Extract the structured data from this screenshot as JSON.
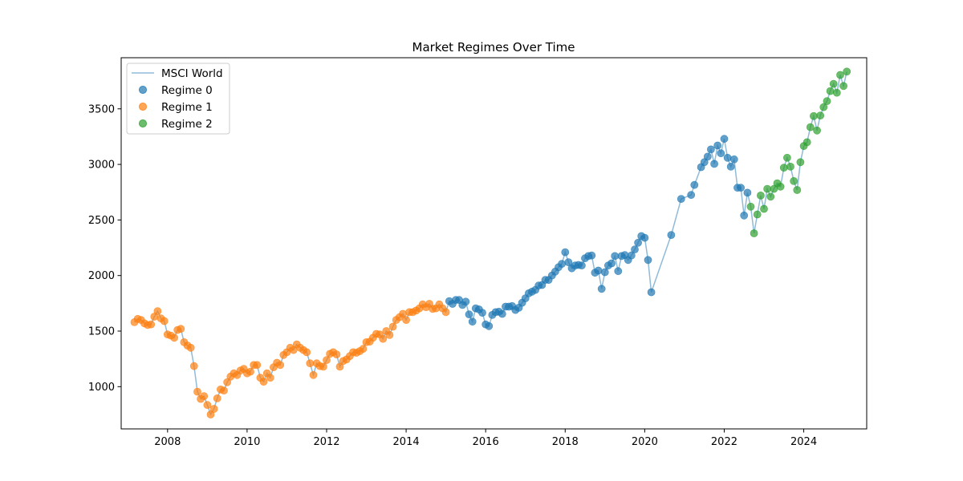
{
  "chart_data": {
    "type": "scatter",
    "title": "Market Regimes Over Time",
    "xlabel": "",
    "ylabel": "",
    "xlim": [
      "2006-11-01",
      "2025-08-01"
    ],
    "ylim": [
      620,
      3960
    ],
    "x_ticks": [
      "2008",
      "2010",
      "2012",
      "2014",
      "2016",
      "2018",
      "2020",
      "2022",
      "2024"
    ],
    "y_ticks": [
      1000,
      1500,
      2000,
      2500,
      3000,
      3500
    ],
    "grid": false,
    "legend_position": "upper-left",
    "line_series": {
      "name": "MSCI World",
      "color": "#1f77b4"
    },
    "series": [
      {
        "name": "Regime 0",
        "color": "#1f77b4",
        "points": [
          [
            "2015-02",
            1770
          ],
          [
            "2015-03",
            1745
          ],
          [
            "2015-04",
            1780
          ],
          [
            "2015-05",
            1780
          ],
          [
            "2015-06",
            1735
          ],
          [
            "2015-07",
            1765
          ],
          [
            "2015-08",
            1650
          ],
          [
            "2015-09",
            1585
          ],
          [
            "2015-10",
            1705
          ],
          [
            "2015-11",
            1695
          ],
          [
            "2015-12",
            1665
          ],
          [
            "2016-01",
            1560
          ],
          [
            "2016-02",
            1545
          ],
          [
            "2016-03",
            1645
          ],
          [
            "2016-04",
            1670
          ],
          [
            "2016-05",
            1675
          ],
          [
            "2016-06",
            1655
          ],
          [
            "2016-07",
            1720
          ],
          [
            "2016-08",
            1720
          ],
          [
            "2016-09",
            1725
          ],
          [
            "2016-10",
            1690
          ],
          [
            "2016-11",
            1710
          ],
          [
            "2016-12",
            1755
          ],
          [
            "2017-01",
            1795
          ],
          [
            "2017-02",
            1840
          ],
          [
            "2017-03",
            1855
          ],
          [
            "2017-04",
            1870
          ],
          [
            "2017-05",
            1910
          ],
          [
            "2017-06",
            1915
          ],
          [
            "2017-07",
            1960
          ],
          [
            "2017-08",
            1960
          ],
          [
            "2017-09",
            2000
          ],
          [
            "2017-10",
            2035
          ],
          [
            "2017-11",
            2075
          ],
          [
            "2017-12",
            2105
          ],
          [
            "2018-01",
            2210
          ],
          [
            "2018-02",
            2120
          ],
          [
            "2018-03",
            2065
          ],
          [
            "2018-04",
            2090
          ],
          [
            "2018-05",
            2095
          ],
          [
            "2018-06",
            2090
          ],
          [
            "2018-07",
            2155
          ],
          [
            "2018-08",
            2175
          ],
          [
            "2018-09",
            2180
          ],
          [
            "2018-10",
            2025
          ],
          [
            "2018-11",
            2045
          ],
          [
            "2018-12",
            1880
          ],
          [
            "2019-01",
            2030
          ],
          [
            "2019-02",
            2090
          ],
          [
            "2019-03",
            2110
          ],
          [
            "2019-04",
            2175
          ],
          [
            "2019-05",
            2040
          ],
          [
            "2019-06",
            2175
          ],
          [
            "2019-07",
            2185
          ],
          [
            "2019-08",
            2140
          ],
          [
            "2019-09",
            2180
          ],
          [
            "2019-10",
            2235
          ],
          [
            "2019-11",
            2295
          ],
          [
            "2019-12",
            2355
          ],
          [
            "2020-01",
            2340
          ],
          [
            "2020-02",
            2140
          ],
          [
            "2020-03",
            1850
          ],
          [
            "2020-09",
            2365
          ],
          [
            "2020-12",
            2690
          ],
          [
            "2021-03",
            2725
          ],
          [
            "2021-04",
            2815
          ],
          [
            "2021-06",
            2975
          ],
          [
            "2021-07",
            3020
          ],
          [
            "2021-08",
            3070
          ],
          [
            "2021-09",
            3135
          ],
          [
            "2021-10",
            3005
          ],
          [
            "2021-11",
            3170
          ],
          [
            "2021-12",
            3100
          ],
          [
            "2022-01",
            3230
          ],
          [
            "2022-02",
            3060
          ],
          [
            "2022-03",
            2980
          ],
          [
            "2022-04",
            3045
          ],
          [
            "2022-05",
            2790
          ],
          [
            "2022-06",
            2790
          ],
          [
            "2022-07",
            2540
          ],
          [
            "2022-08",
            2745
          ]
        ]
      },
      {
        "name": "Regime 1",
        "color": "#ff7f0e",
        "points": [
          [
            "2007-03",
            1580
          ],
          [
            "2007-04",
            1610
          ],
          [
            "2007-05",
            1600
          ],
          [
            "2007-06",
            1570
          ],
          [
            "2007-07",
            1555
          ],
          [
            "2007-08",
            1560
          ],
          [
            "2007-09",
            1630
          ],
          [
            "2007-10",
            1680
          ],
          [
            "2007-11",
            1615
          ],
          [
            "2007-12",
            1590
          ],
          [
            "2008-01",
            1470
          ],
          [
            "2008-02",
            1460
          ],
          [
            "2008-03",
            1440
          ],
          [
            "2008-04",
            1510
          ],
          [
            "2008-05",
            1520
          ],
          [
            "2008-06",
            1400
          ],
          [
            "2008-07",
            1370
          ],
          [
            "2008-08",
            1350
          ],
          [
            "2008-09",
            1185
          ],
          [
            "2008-10",
            955
          ],
          [
            "2008-11",
            890
          ],
          [
            "2008-12",
            915
          ],
          [
            "2009-01",
            835
          ],
          [
            "2009-02",
            750
          ],
          [
            "2009-03",
            800
          ],
          [
            "2009-04",
            895
          ],
          [
            "2009-05",
            975
          ],
          [
            "2009-06",
            965
          ],
          [
            "2009-07",
            1040
          ],
          [
            "2009-08",
            1090
          ],
          [
            "2009-09",
            1120
          ],
          [
            "2009-10",
            1105
          ],
          [
            "2009-11",
            1145
          ],
          [
            "2009-12",
            1160
          ],
          [
            "2010-01",
            1120
          ],
          [
            "2010-02",
            1135
          ],
          [
            "2010-03",
            1195
          ],
          [
            "2010-04",
            1195
          ],
          [
            "2010-05",
            1080
          ],
          [
            "2010-06",
            1045
          ],
          [
            "2010-07",
            1120
          ],
          [
            "2010-08",
            1080
          ],
          [
            "2010-09",
            1175
          ],
          [
            "2010-10",
            1215
          ],
          [
            "2010-11",
            1195
          ],
          [
            "2010-12",
            1285
          ],
          [
            "2011-01",
            1310
          ],
          [
            "2011-02",
            1350
          ],
          [
            "2011-03",
            1330
          ],
          [
            "2011-04",
            1380
          ],
          [
            "2011-05",
            1350
          ],
          [
            "2011-06",
            1330
          ],
          [
            "2011-07",
            1310
          ],
          [
            "2011-08",
            1210
          ],
          [
            "2011-09",
            1105
          ],
          [
            "2011-10",
            1210
          ],
          [
            "2011-11",
            1185
          ],
          [
            "2011-12",
            1180
          ],
          [
            "2012-01",
            1240
          ],
          [
            "2012-02",
            1295
          ],
          [
            "2012-03",
            1310
          ],
          [
            "2012-04",
            1290
          ],
          [
            "2012-05",
            1180
          ],
          [
            "2012-06",
            1230
          ],
          [
            "2012-07",
            1245
          ],
          [
            "2012-08",
            1275
          ],
          [
            "2012-09",
            1310
          ],
          [
            "2012-10",
            1305
          ],
          [
            "2012-11",
            1320
          ],
          [
            "2012-12",
            1340
          ],
          [
            "2013-01",
            1400
          ],
          [
            "2013-02",
            1405
          ],
          [
            "2013-03",
            1440
          ],
          [
            "2013-04",
            1475
          ],
          [
            "2013-05",
            1470
          ],
          [
            "2013-06",
            1430
          ],
          [
            "2013-07",
            1500
          ],
          [
            "2013-08",
            1465
          ],
          [
            "2013-09",
            1540
          ],
          [
            "2013-10",
            1600
          ],
          [
            "2013-11",
            1625
          ],
          [
            "2013-12",
            1655
          ],
          [
            "2014-01",
            1600
          ],
          [
            "2014-02",
            1670
          ],
          [
            "2014-03",
            1670
          ],
          [
            "2014-04",
            1685
          ],
          [
            "2014-05",
            1705
          ],
          [
            "2014-06",
            1740
          ],
          [
            "2014-07",
            1715
          ],
          [
            "2014-08",
            1745
          ],
          [
            "2014-09",
            1700
          ],
          [
            "2014-10",
            1705
          ],
          [
            "2014-11",
            1740
          ],
          [
            "2014-12",
            1705
          ],
          [
            "2015-01",
            1670
          ]
        ]
      },
      {
        "name": "Regime 2",
        "color": "#2ca02c",
        "points": [
          [
            "2022-09",
            2620
          ],
          [
            "2022-10",
            2380
          ],
          [
            "2022-11",
            2550
          ],
          [
            "2022-12",
            2720
          ],
          [
            "2023-01",
            2600
          ],
          [
            "2023-02",
            2780
          ],
          [
            "2023-03",
            2710
          ],
          [
            "2023-04",
            2780
          ],
          [
            "2023-05",
            2830
          ],
          [
            "2023-06",
            2800
          ],
          [
            "2023-07",
            2970
          ],
          [
            "2023-08",
            3060
          ],
          [
            "2023-09",
            2980
          ],
          [
            "2023-10",
            2850
          ],
          [
            "2023-11",
            2770
          ],
          [
            "2023-12",
            3020
          ],
          [
            "2024-01",
            3165
          ],
          [
            "2024-02",
            3200
          ],
          [
            "2024-03",
            3335
          ],
          [
            "2024-04",
            3435
          ],
          [
            "2024-05",
            3305
          ],
          [
            "2024-06",
            3440
          ],
          [
            "2024-07",
            3515
          ],
          [
            "2024-08",
            3570
          ],
          [
            "2024-09",
            3660
          ],
          [
            "2024-10",
            3725
          ],
          [
            "2024-11",
            3645
          ],
          [
            "2024-12",
            3805
          ],
          [
            "2025-01",
            3705
          ],
          [
            "2025-02",
            3835
          ]
        ]
      }
    ]
  }
}
